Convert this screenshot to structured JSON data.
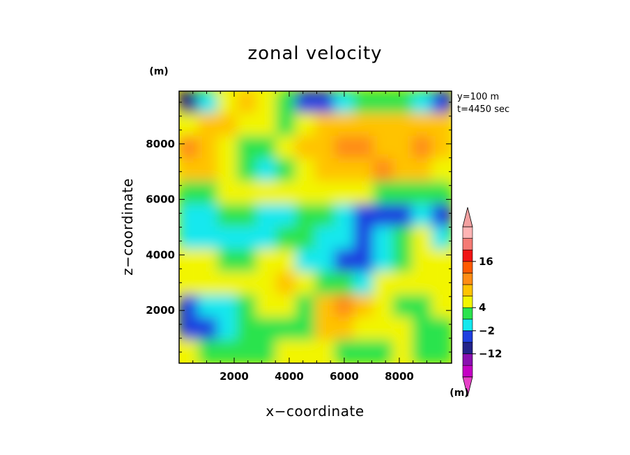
{
  "chart_data": {
    "type": "heatmap",
    "title": "zonal velocity",
    "xlabel": "x−coordinate",
    "ylabel": "z−coordinate",
    "x_unit": "(m)",
    "y_unit": "(m)",
    "colorbar_unit": "(m)",
    "annotation_lines": [
      "y=100  m",
      "t=4450  sec"
    ],
    "xlim": [
      0,
      9900
    ],
    "ylim": [
      100,
      9900
    ],
    "xticks": [
      2000,
      4000,
      6000,
      8000
    ],
    "yticks": [
      2000,
      4000,
      6000,
      8000
    ],
    "colorbar": {
      "levels_colors": [
        "#c400c4",
        "#8a0fb0",
        "#23238a",
        "#1f3fe0",
        "#14e8ee",
        "#2ae34e",
        "#f2f500",
        "#ffc300",
        "#ff8c14",
        "#ff5a00",
        "#f01414",
        "#f47a74",
        "#ffb4b4"
      ],
      "extend_low_color": "#e640c8",
      "extend_high_color": "#f2a0a0",
      "tick_labels": [
        "16",
        "4",
        "−2",
        "−12"
      ],
      "tick_boundaries": [
        10,
        6,
        4,
        2
      ]
    },
    "field": {
      "grid_cols": 14,
      "grid_rows": 12,
      "description_rows_top_to_bottom": [
        [
          "d",
          "c",
          "y",
          "o",
          "y",
          "g",
          "b",
          "b",
          "c",
          "g",
          "g",
          "g",
          "c",
          "b"
        ],
        [
          "y",
          "o",
          "o",
          "y",
          "y",
          "g",
          "y",
          "o",
          "o",
          "o",
          "o",
          "o",
          "o",
          "o"
        ],
        [
          "O",
          "o",
          "y",
          "g",
          "g",
          "y",
          "o",
          "o",
          "O",
          "O",
          "o",
          "o",
          "O",
          "o"
        ],
        [
          "o",
          "o",
          "y",
          "g",
          "c",
          "g",
          "y",
          "o",
          "o",
          "o",
          "O",
          "o",
          "o",
          "y"
        ],
        [
          "g",
          "g",
          "y",
          "y",
          "y",
          "y",
          "y",
          "y",
          "y",
          "y",
          "g",
          "g",
          "g",
          "g"
        ],
        [
          "c",
          "c",
          "g",
          "g",
          "c",
          "c",
          "g",
          "g",
          "c",
          "b",
          "b",
          "b",
          "c",
          "b"
        ],
        [
          "c",
          "c",
          "c",
          "c",
          "c",
          "g",
          "g",
          "c",
          "c",
          "b",
          "c",
          "g",
          "y",
          "c"
        ],
        [
          "y",
          "y",
          "g",
          "g",
          "y",
          "y",
          "c",
          "c",
          "b",
          "b",
          "c",
          "g",
          "y",
          "y"
        ],
        [
          "y",
          "y",
          "y",
          "y",
          "y",
          "o",
          "y",
          "g",
          "g",
          "c",
          "y",
          "y",
          "y",
          "y"
        ],
        [
          "b",
          "c",
          "c",
          "g",
          "y",
          "y",
          "g",
          "o",
          "O",
          "o",
          "y",
          "g",
          "g",
          "y"
        ],
        [
          "b",
          "b",
          "c",
          "g",
          "g",
          "g",
          "g",
          "o",
          "o",
          "y",
          "y",
          "y",
          "g",
          "g"
        ],
        [
          "y",
          "g",
          "g",
          "g",
          "g",
          "y",
          "y",
          "y",
          "g",
          "g",
          "g",
          "y",
          "g",
          "g"
        ]
      ],
      "legend": {
        "d": "#23238a",
        "b": "#1f3fe0",
        "c": "#14e8ee",
        "g": "#2ae34e",
        "y": "#f2f500",
        "o": "#ffc300",
        "O": "#ff8c14"
      }
    }
  }
}
